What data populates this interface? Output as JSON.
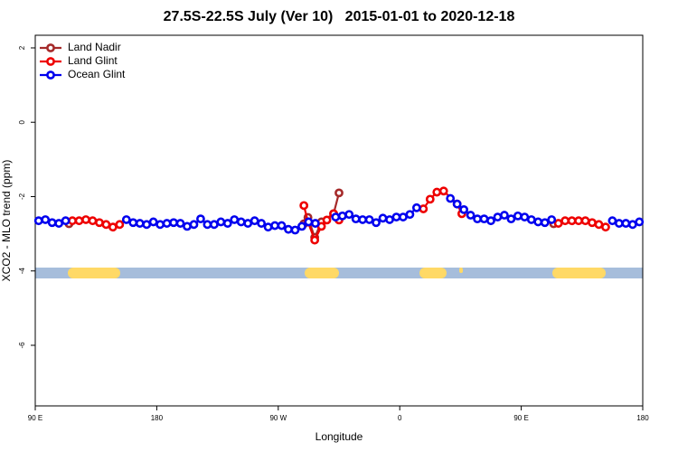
{
  "chart_data": {
    "type": "line",
    "title": "27.5S-22.5S July (Ver 10)   2015-01-01 to 2020-12-18",
    "xlabel": "Longitude",
    "ylabel": "XCO2 - MLO trend (ppm)",
    "xlim": [
      90,
      540
    ],
    "ylim": [
      -7.63,
      2.34
    ],
    "xticks": [
      {
        "value": 90,
        "label": "90 E"
      },
      180,
      {
        "value": 270,
        "label": "90 W"
      },
      {
        "value": 360,
        "label": "0"
      },
      {
        "value": 450,
        "label": "90 E"
      },
      {
        "value": 540,
        "label": "180"
      }
    ],
    "yticks": [
      -6,
      -4,
      -2,
      0,
      2
    ],
    "legend": "top-left",
    "series": [
      {
        "name": "Land Nadir",
        "color": "#a52a2a",
        "x": [
          115,
          200,
          289,
          292,
          297,
          302,
          311,
          315,
          400,
          474
        ],
        "values": [
          -2.73,
          null,
          -2.73,
          -2.56,
          -3.1,
          -2.68,
          -2.46,
          -1.9,
          null,
          -2.73
        ]
      },
      {
        "name": "Land Glint",
        "color": "#ee0000",
        "x": [
          117.5,
          122.5,
          127.5,
          132.5,
          137.5,
          142.5,
          147.5,
          152.5,
          155,
          289,
          292,
          297,
          302,
          306,
          311,
          315,
          320,
          377.5,
          382.5,
          387.5,
          392.5,
          402.5,
          406,
          420,
          477.5,
          482.5,
          487.5,
          492.5,
          497.5,
          502.5,
          507.5,
          512.5
        ],
        "values": [
          -2.65,
          -2.65,
          -2.62,
          -2.65,
          -2.7,
          -2.75,
          -2.82,
          -2.75,
          null,
          -2.24,
          -2.68,
          -3.17,
          -2.8,
          -2.63,
          -2.46,
          -2.63,
          null,
          -2.33,
          -2.07,
          -1.88,
          -1.85,
          -2.2,
          -2.46,
          null,
          -2.72,
          -2.65,
          -2.65,
          -2.65,
          -2.65,
          -2.7,
          -2.75,
          -2.82
        ]
      },
      {
        "name": "Ocean Glint",
        "color": "#0000ee",
        "x": [
          92.5,
          97.5,
          102.5,
          107.5,
          112.5,
          117.5,
          157.5,
          162.5,
          167.5,
          172.5,
          177.5,
          182.5,
          187.5,
          192.5,
          197.5,
          202.5,
          207.5,
          212.5,
          217.5,
          222.5,
          227.5,
          232.5,
          237.5,
          242.5,
          247.5,
          252.5,
          257.5,
          262.5,
          267.5,
          272.5,
          277.5,
          282.5,
          287.5,
          292.5,
          297.5,
          302.5,
          312.5,
          317.5,
          322.5,
          327.5,
          332.5,
          337.5,
          342.5,
          347.5,
          352.5,
          357.5,
          362.5,
          367.5,
          372.5,
          377.5,
          397.5,
          402.5,
          407.5,
          412.5,
          417.5,
          422.5,
          427.5,
          432.5,
          437.5,
          442.5,
          447.5,
          452.5,
          457.5,
          462.5,
          467.5,
          472.5,
          477.5,
          517.5,
          522.5,
          527.5,
          532.5,
          537.5
        ],
        "values": [
          -2.65,
          -2.62,
          -2.7,
          -2.72,
          -2.65,
          null,
          -2.62,
          -2.7,
          -2.72,
          -2.75,
          -2.68,
          -2.75,
          -2.72,
          -2.7,
          -2.72,
          -2.8,
          -2.75,
          -2.6,
          -2.75,
          -2.75,
          -2.68,
          -2.72,
          -2.62,
          -2.68,
          -2.72,
          -2.65,
          -2.72,
          -2.82,
          -2.78,
          -2.78,
          -2.88,
          -2.9,
          -2.8,
          -2.68,
          -2.72,
          null,
          -2.55,
          -2.52,
          -2.48,
          -2.6,
          -2.62,
          -2.62,
          -2.7,
          -2.58,
          -2.62,
          -2.55,
          -2.55,
          -2.48,
          -2.3,
          null,
          -2.05,
          -2.2,
          -2.35,
          -2.5,
          -2.6,
          -2.6,
          -2.65,
          -2.55,
          -2.5,
          -2.6,
          -2.52,
          -2.55,
          -2.62,
          -2.68,
          -2.7,
          -2.62,
          null,
          -2.65,
          -2.72,
          -2.72,
          -2.75,
          -2.68
        ]
      }
    ]
  }
}
